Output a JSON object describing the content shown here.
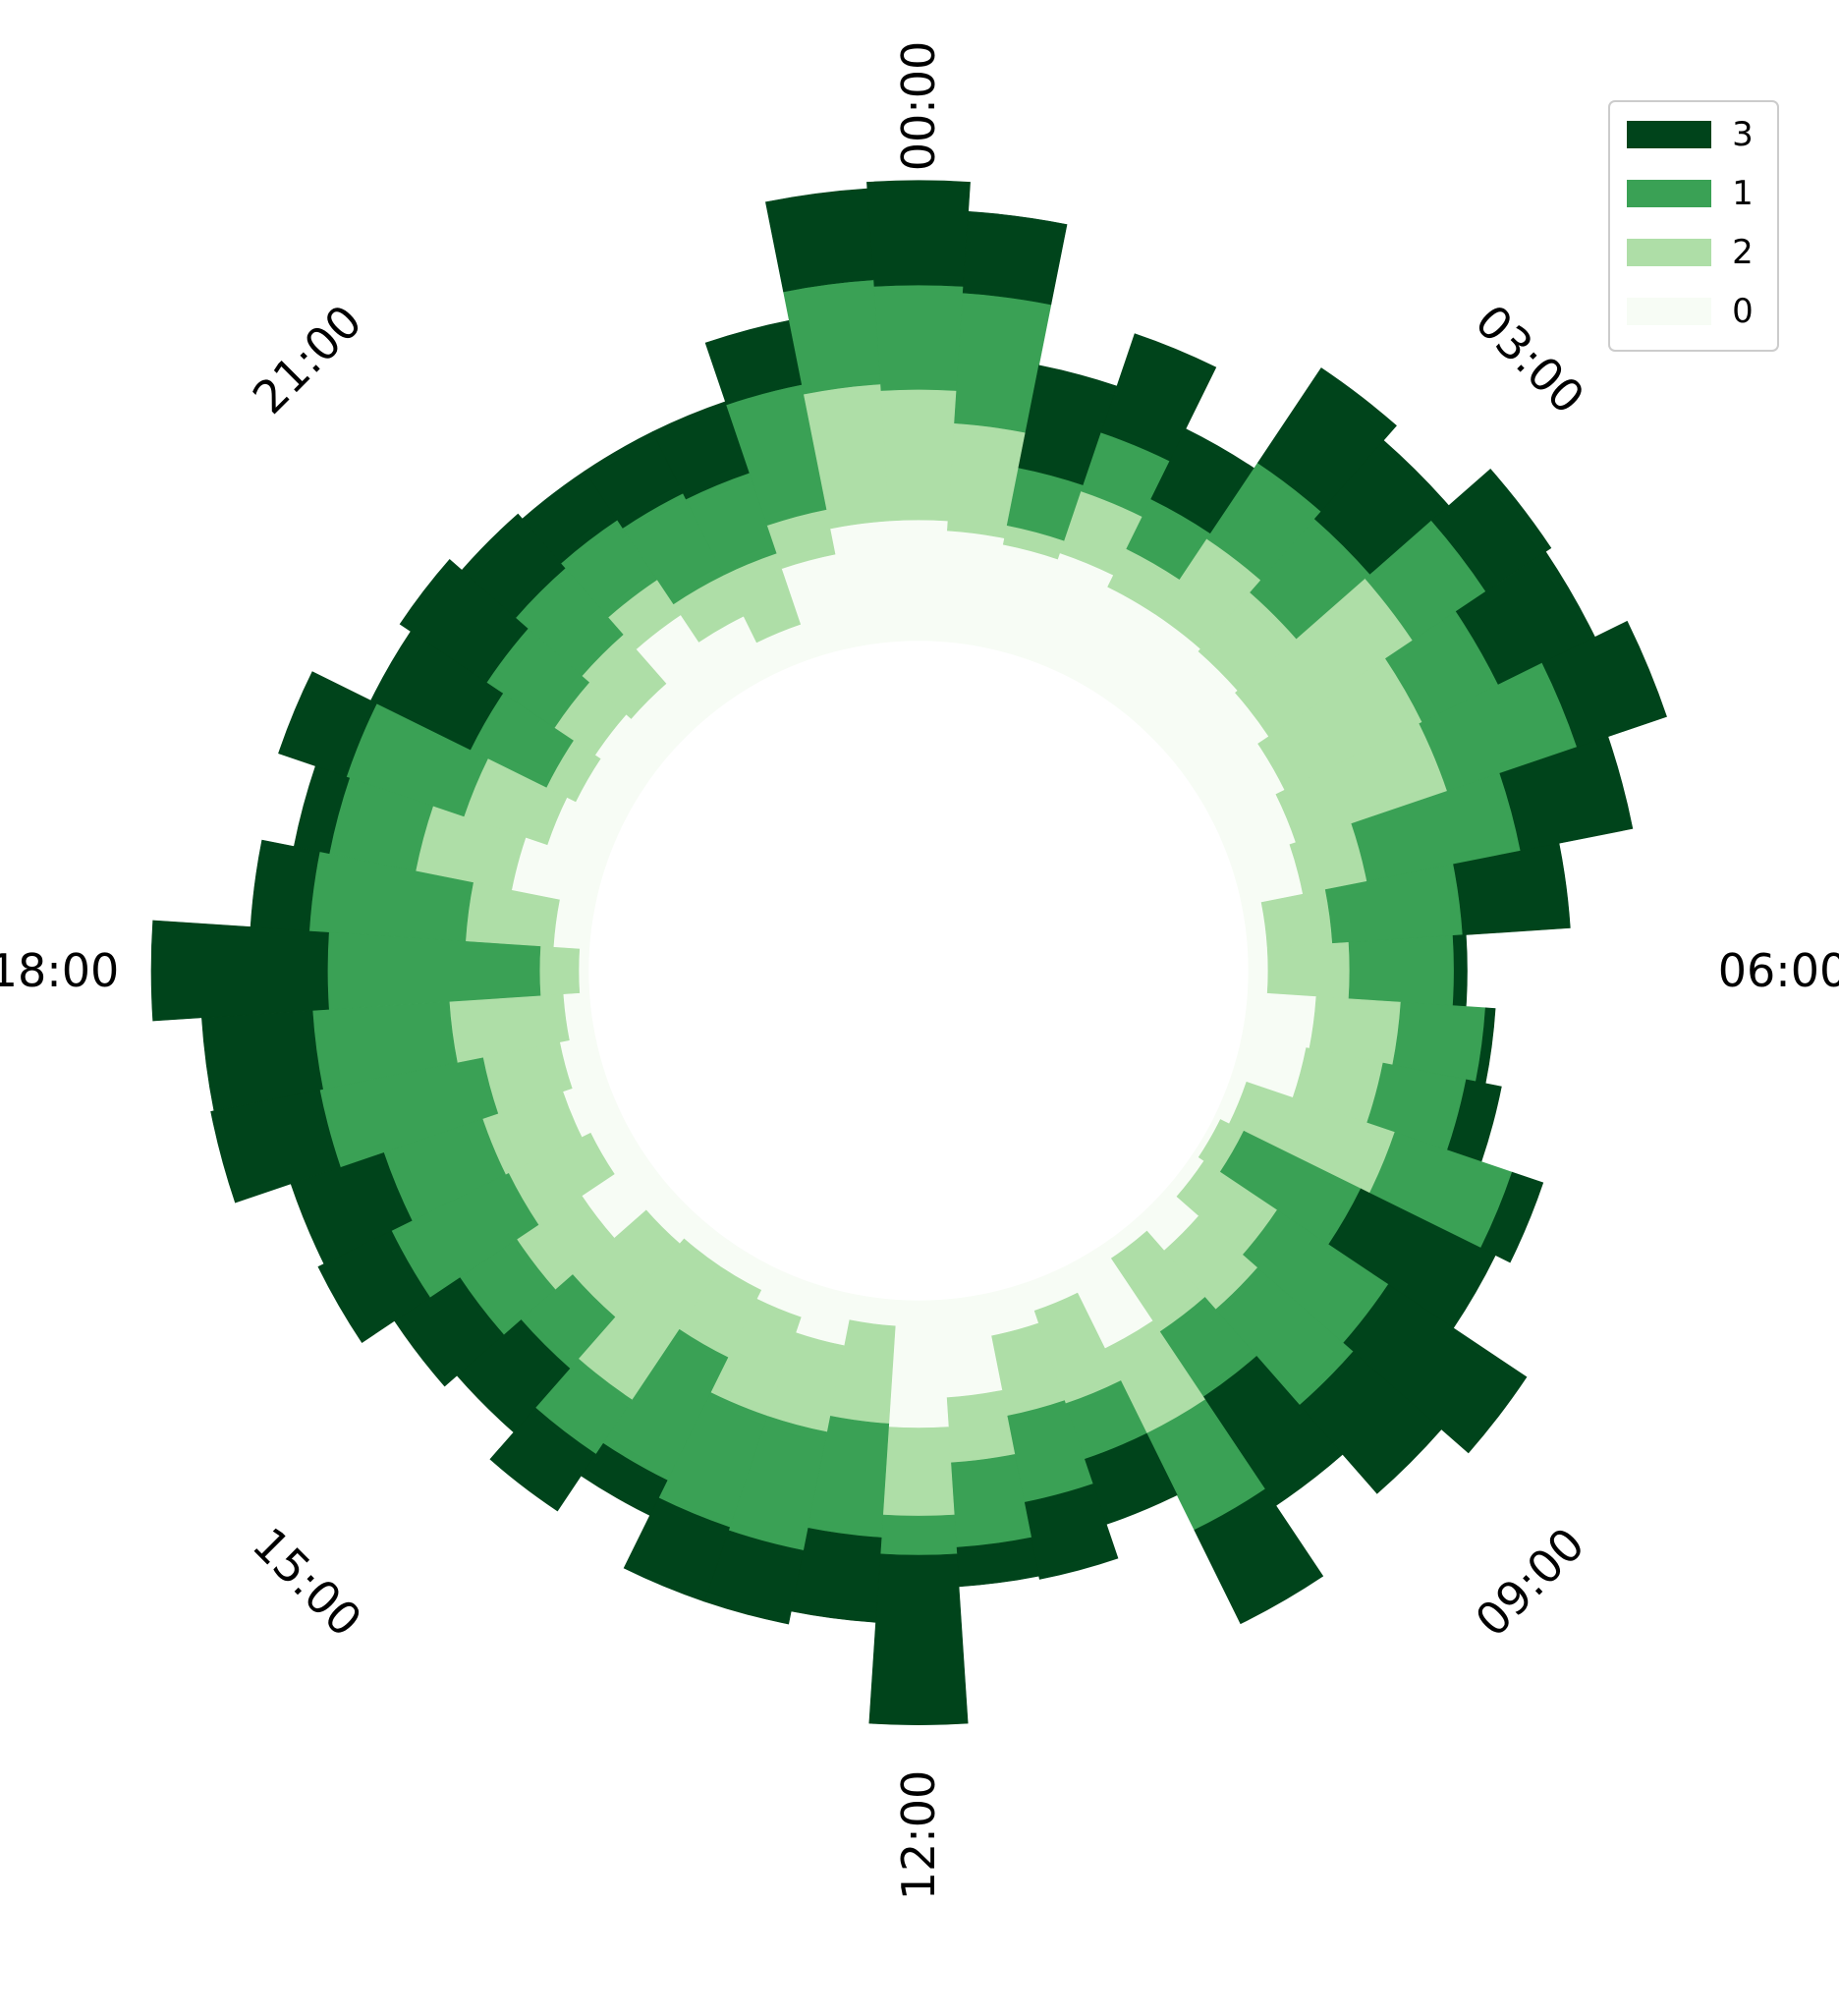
{
  "chart_data": {
    "type": "bar",
    "subtype": "stacked-polar-bar",
    "angular_axis": {
      "direction": "clockwise",
      "zero_at": "top",
      "period_hours": 24,
      "tick_labels": [
        "00:00",
        "03:00",
        "06:00",
        "09:00",
        "12:00",
        "15:00",
        "18:00",
        "21:00"
      ]
    },
    "x": [
      0,
      0.5,
      1,
      1.5,
      2,
      2.5,
      3,
      3.5,
      4,
      4.5,
      5,
      5.5,
      6,
      6.5,
      7,
      7.5,
      8,
      8.5,
      9,
      9.5,
      10,
      10.5,
      11,
      11.5,
      12,
      12.5,
      13,
      13.5,
      14,
      14.5,
      15,
      15.5,
      16,
      16.5,
      17,
      17.5,
      18,
      18.5,
      19,
      19.5,
      20,
      20.5,
      21,
      21.5,
      22,
      22.5,
      23,
      23.5
    ],
    "stack_order": [
      "0",
      "2",
      "1",
      "3"
    ],
    "series": [
      {
        "name": "0",
        "color": "#f7fcf5",
        "values": [
          0.37,
          0.34,
          0.32,
          0.34,
          0.3,
          0.3,
          0.29,
          0.28,
          0.24,
          0.21,
          0.19,
          0.06,
          0.06,
          0.21,
          0.2,
          0.05,
          0.02,
          0.04,
          0.13,
          0.05,
          0.28,
          0.09,
          0.13,
          0.3,
          0.39,
          0.08,
          0.16,
          0.11,
          0.08,
          0.08,
          0.1,
          0.23,
          0.11,
          0.14,
          0.11,
          0.08,
          0.03,
          0.11,
          0.26,
          0.19,
          0.16,
          0.18,
          0.16,
          0.3,
          0.2,
          0.11,
          0.29,
          0.37
        ]
      },
      {
        "name": "2",
        "color": "#aedea7",
        "values": [
          0.4,
          0.33,
          0.06,
          0.2,
          0.13,
          0.28,
          0.24,
          0.53,
          0.47,
          0.49,
          0.2,
          0.2,
          0.25,
          0.26,
          0.24,
          0.48,
          0.08,
          0.27,
          0.24,
          0.27,
          0.29,
          0.3,
          0.25,
          0.2,
          0.27,
          0.3,
          0.27,
          0.32,
          0.23,
          0.49,
          0.3,
          0.24,
          0.28,
          0.26,
          0.24,
          0.35,
          0.12,
          0.27,
          0.3,
          0.27,
          0.1,
          0.15,
          0.2,
          0.13,
          0.14,
          0.23,
          0.14,
          0.42
        ]
      },
      {
        "name": "1",
        "color": "#3aa155",
        "values": [
          0.32,
          0.4,
          0.18,
          0.19,
          0.17,
          0.28,
          0.3,
          0.27,
          0.26,
          0.42,
          0.48,
          0.4,
          0.32,
          0.26,
          0.26,
          0.38,
          0.4,
          0.41,
          0.39,
          0.24,
          0.33,
          0.18,
          0.27,
          0.26,
          0.12,
          0.35,
          0.37,
          0.36,
          0.42,
          0.2,
          0.21,
          0.21,
          0.4,
          0.32,
          0.51,
          0.42,
          0.65,
          0.48,
          0.27,
          0.38,
          0.26,
          0.25,
          0.27,
          0.22,
          0.28,
          0.26,
          0.39,
          0.32
        ]
      },
      {
        "name": "3",
        "color": "#00441b",
        "values": [
          0.32,
          0.25,
          0.32,
          0.32,
          0.24,
          0.35,
          0.32,
          0.24,
          0.33,
          0.29,
          0.35,
          0.33,
          0.04,
          0.03,
          0.11,
          0.1,
          0.46,
          0.51,
          0.36,
          0.4,
          0.32,
          0.21,
          0.24,
          0.12,
          0.52,
          0.26,
          0.23,
          0.24,
          0.12,
          0.21,
          0.26,
          0.24,
          0.25,
          0.3,
          0.34,
          0.34,
          0.54,
          0.18,
          0.11,
          0.22,
          0.34,
          0.32,
          0.22,
          0.18,
          0.21,
          0.23,
          0.2,
          0.28
        ]
      }
    ],
    "ylim": [
      -1.0,
      1.62
    ],
    "grid": false,
    "legend": {
      "placement": "top-right",
      "entries": [
        "3",
        "1",
        "2",
        "0"
      ]
    }
  }
}
